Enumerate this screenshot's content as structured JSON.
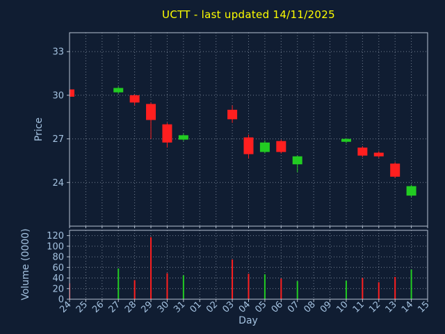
{
  "chart_data": {
    "type": "candlestick",
    "title": "UCTT - last updated 14/11/2025",
    "xlabel": "Day",
    "x_ticks": [
      "24",
      "25",
      "26",
      "27",
      "28",
      "29",
      "30",
      "31",
      "01",
      "02",
      "03",
      "04",
      "05",
      "06",
      "07",
      "08",
      "09",
      "10",
      "11",
      "12",
      "13",
      "14",
      "15"
    ],
    "price_panel": {
      "ylabel": "Price",
      "y_ticks": [
        33,
        30,
        27,
        24
      ],
      "ylim": [
        21.0,
        34.3
      ],
      "grid": true
    },
    "volume_panel": {
      "ylabel": "Volume (0000)",
      "y_ticks": [
        120,
        100,
        80,
        60,
        40,
        20,
        0
      ],
      "ylim": [
        0,
        130
      ],
      "grid": true
    },
    "colors": {
      "background": "#101d32",
      "text": "#a4c2e0",
      "title": "#ffff00",
      "grid": "#c8d4e4",
      "axis": "#b8c4d4",
      "up": "#22cc22",
      "down": "#ff1f1f"
    },
    "candles": [
      {
        "day": "24",
        "open": 30.4,
        "high": 30.45,
        "low": 29.8,
        "close": 29.9,
        "volume": 30
      },
      {
        "day": "27",
        "open": 30.2,
        "high": 30.6,
        "low": 30.1,
        "close": 30.5,
        "volume": 58
      },
      {
        "day": "28",
        "open": 30.0,
        "high": 30.05,
        "low": 29.3,
        "close": 29.5,
        "volume": 36
      },
      {
        "day": "29",
        "open": 29.4,
        "high": 29.5,
        "low": 27.0,
        "close": 28.3,
        "volume": 117
      },
      {
        "day": "30",
        "open": 28.0,
        "high": 28.1,
        "low": 26.4,
        "close": 26.75,
        "volume": 49
      },
      {
        "day": "31",
        "open": 26.95,
        "high": 27.35,
        "low": 26.85,
        "close": 27.25,
        "volume": 45
      },
      {
        "day": "03",
        "open": 29.0,
        "high": 29.3,
        "low": 28.1,
        "close": 28.35,
        "volume": 75
      },
      {
        "day": "04",
        "open": 27.1,
        "high": 27.3,
        "low": 25.65,
        "close": 25.95,
        "volume": 48
      },
      {
        "day": "05",
        "open": 26.1,
        "high": 26.9,
        "low": 26.0,
        "close": 26.75,
        "volume": 47
      },
      {
        "day": "06",
        "open": 26.85,
        "high": 26.95,
        "low": 26.0,
        "close": 26.1,
        "volume": 39
      },
      {
        "day": "07",
        "open": 25.25,
        "high": 25.85,
        "low": 24.7,
        "close": 25.8,
        "volume": 34
      },
      {
        "day": "10",
        "open": 26.8,
        "high": 27.05,
        "low": 26.7,
        "close": 27.0,
        "volume": 35
      },
      {
        "day": "11",
        "open": 26.4,
        "high": 26.5,
        "low": 25.75,
        "close": 25.85,
        "volume": 40
      },
      {
        "day": "12",
        "open": 26.05,
        "high": 26.15,
        "low": 25.7,
        "close": 25.8,
        "volume": 32
      },
      {
        "day": "13",
        "open": 25.3,
        "high": 25.4,
        "low": 24.3,
        "close": 24.4,
        "volume": 42
      },
      {
        "day": "14",
        "open": 23.1,
        "high": 23.85,
        "low": 23.0,
        "close": 23.75,
        "volume": 56
      }
    ]
  }
}
